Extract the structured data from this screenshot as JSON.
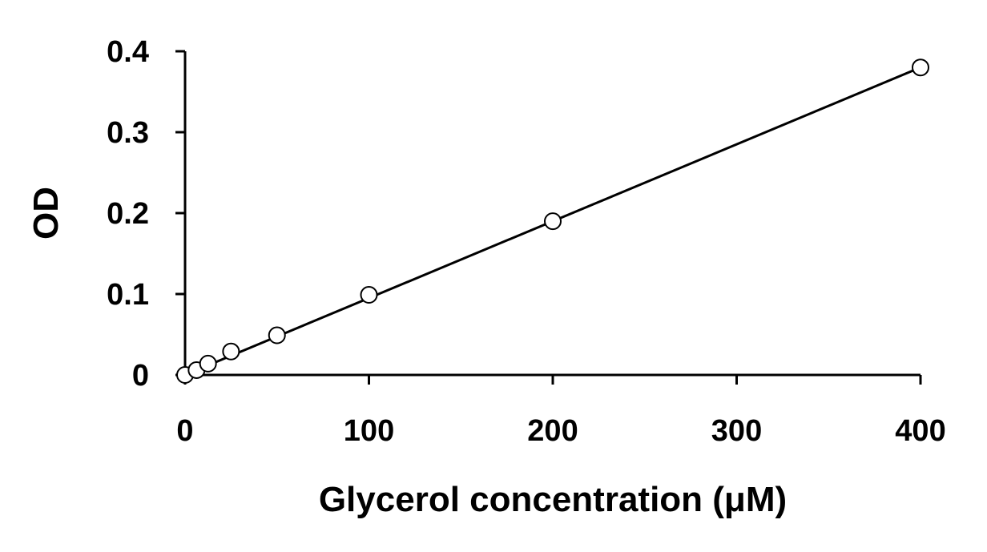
{
  "chart_data": {
    "type": "scatter",
    "title": "",
    "xlabel": "Glycerol concentration (μM)",
    "ylabel": "OD",
    "xlim": [
      0,
      400
    ],
    "ylim": [
      0,
      0.4
    ],
    "xticks": [
      0,
      100,
      200,
      300,
      400
    ],
    "yticks": [
      0,
      0.1,
      0.2,
      0.3,
      0.4
    ],
    "xtick_labels": [
      "0",
      "100",
      "200",
      "300",
      "400"
    ],
    "ytick_labels": [
      "0",
      "0.1",
      "0.2",
      "0.3",
      "0.4"
    ],
    "grid": false,
    "legend": "none",
    "series": [
      {
        "marker": "open-circle",
        "x": [
          0,
          6.25,
          12.5,
          25,
          50,
          100,
          200,
          400
        ],
        "y": [
          0,
          0.006,
          0.014,
          0.029,
          0.049,
          0.099,
          0.19,
          0.38
        ]
      }
    ],
    "trendline": {
      "x": [
        0,
        400
      ],
      "y": [
        0,
        0.38
      ]
    }
  }
}
